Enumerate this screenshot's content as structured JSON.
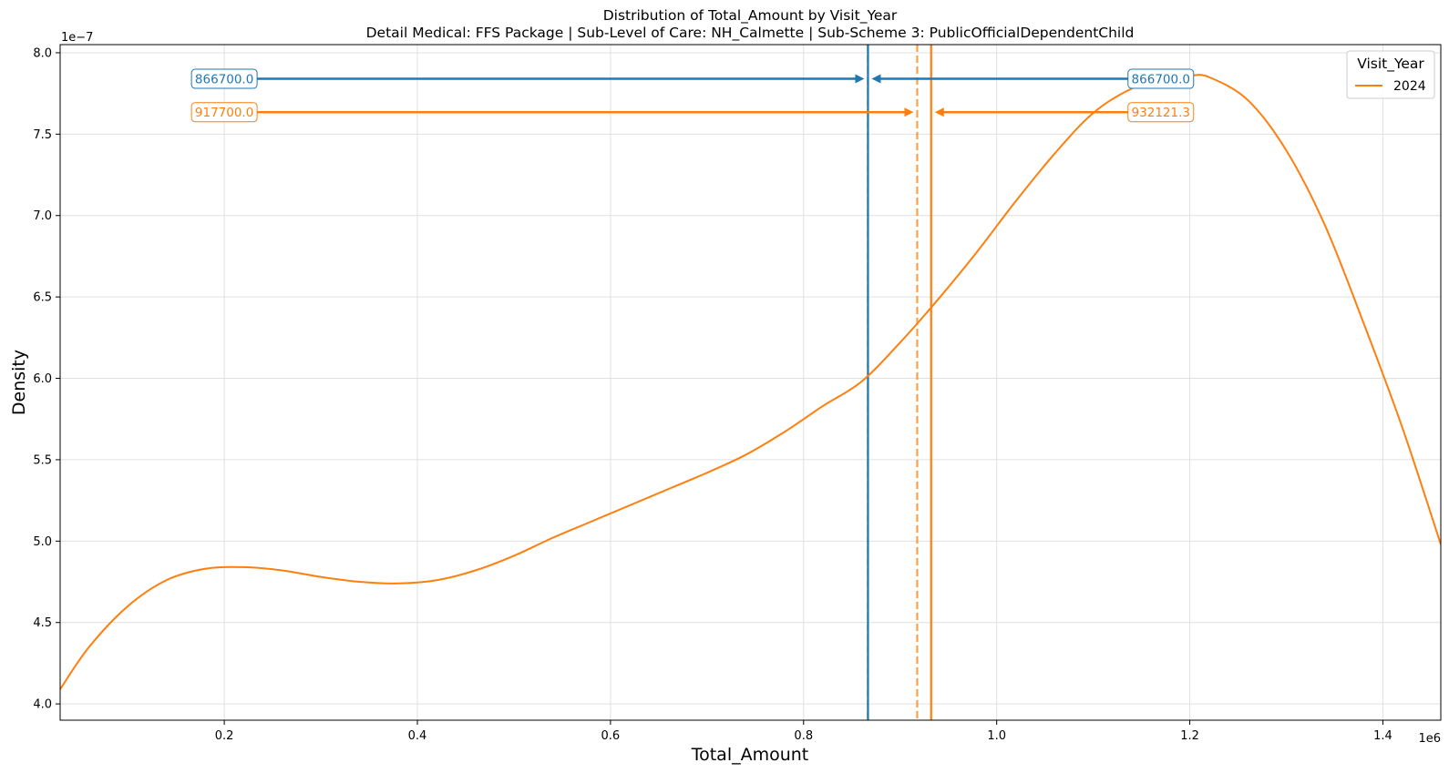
{
  "chart_data": {
    "type": "line",
    "title": "Distribution of Total_Amount by Visit_Year",
    "subtitle": "Detail Medical: FFS Package | Sub-Level of Care: NH_Calmette | Sub-Scheme 3: PublicOfficialDependentChild",
    "xlabel": "Total_Amount",
    "ylabel": "Density",
    "x_offset_label": "1e6",
    "y_offset_label": "1e−7",
    "xlim": [
      0.03,
      1.46
    ],
    "ylim": [
      3.9,
      8.05
    ],
    "x_ticks": [
      0.2,
      0.4,
      0.6,
      0.8,
      1.0,
      1.2,
      1.4
    ],
    "x_tick_labels": [
      "0.2",
      "0.4",
      "0.6",
      "0.8",
      "1.0",
      "1.2",
      "1.4"
    ],
    "y_ticks": [
      4.0,
      4.5,
      5.0,
      5.5,
      6.0,
      6.5,
      7.0,
      7.5,
      8.0
    ],
    "y_tick_labels": [
      "4.0",
      "4.5",
      "5.0",
      "5.5",
      "6.0",
      "6.5",
      "7.0",
      "7.5",
      "8.0"
    ],
    "grid": true,
    "legend": {
      "title": "Visit_Year",
      "placement": "top-right"
    },
    "series": [
      {
        "name": "2024",
        "color": "#ff7f0e",
        "x": [
          0.03,
          0.06,
          0.1,
          0.14,
          0.18,
          0.22,
          0.26,
          0.3,
          0.34,
          0.38,
          0.42,
          0.46,
          0.5,
          0.54,
          0.58,
          0.62,
          0.66,
          0.7,
          0.74,
          0.78,
          0.82,
          0.86,
          0.9,
          0.94,
          0.98,
          1.02,
          1.06,
          1.1,
          1.14,
          1.18,
          1.2,
          1.22,
          1.26,
          1.3,
          1.34,
          1.38,
          1.42,
          1.46
        ],
        "y": [
          4.09,
          4.35,
          4.6,
          4.76,
          4.83,
          4.84,
          4.82,
          4.78,
          4.75,
          4.74,
          4.76,
          4.82,
          4.91,
          5.02,
          5.12,
          5.22,
          5.32,
          5.42,
          5.53,
          5.67,
          5.83,
          5.98,
          6.22,
          6.49,
          6.78,
          7.09,
          7.38,
          7.63,
          7.78,
          7.855,
          7.86,
          7.85,
          7.71,
          7.4,
          6.94,
          6.34,
          5.7,
          4.98
        ]
      }
    ],
    "vlines": [
      {
        "x": 0.8667,
        "color": "#1f77b4",
        "style": "solid"
      },
      {
        "x": 0.8667,
        "color": "#1f77b4",
        "style": "dashed"
      },
      {
        "x": 0.9177,
        "color": "#ff7f0e",
        "style": "dashed"
      },
      {
        "x": 0.932121,
        "color": "#ff7f0e",
        "style": "solid"
      }
    ],
    "annotations": [
      {
        "text": "866700.0",
        "color": "#1f77b4",
        "text_x": 0.2,
        "y": 7.84,
        "arrow_to": 0.8667
      },
      {
        "text": "866700.0",
        "color": "#1f77b4",
        "text_x": 1.17,
        "y": 7.84,
        "arrow_to": 0.8667
      },
      {
        "text": "917700.0",
        "color": "#ff7f0e",
        "text_x": 0.2,
        "y": 7.635,
        "arrow_to": 0.9177
      },
      {
        "text": "932121.3",
        "color": "#ff7f0e",
        "text_x": 1.17,
        "y": 7.635,
        "arrow_to": 0.932121
      }
    ]
  }
}
